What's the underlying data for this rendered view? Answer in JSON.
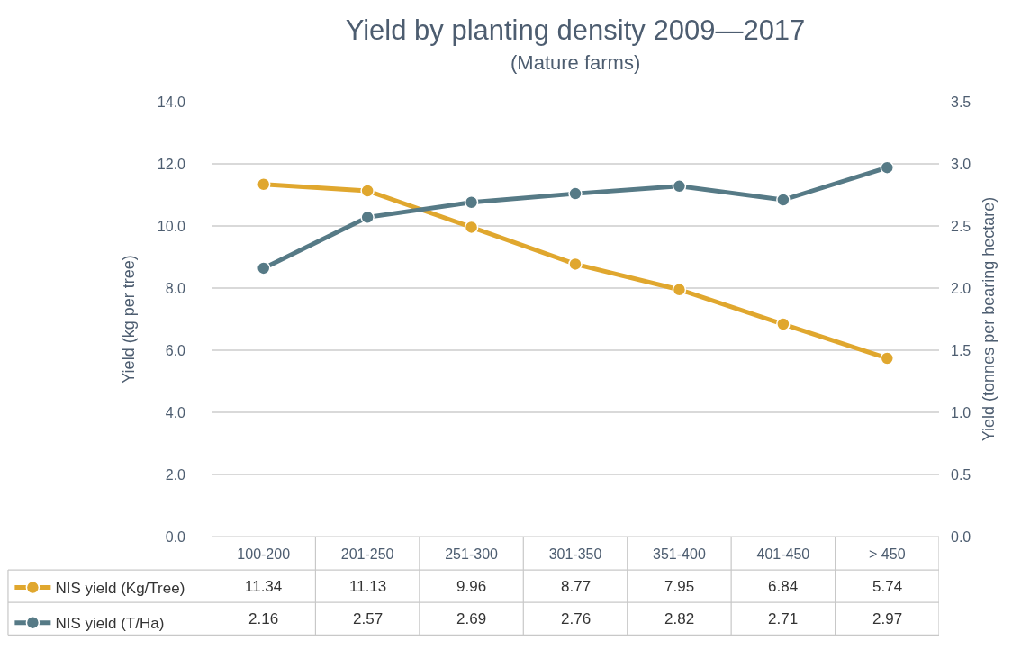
{
  "chart_data": {
    "type": "line",
    "title": "Yield by planting density 2009—2017",
    "subtitle": "(Mature farms)",
    "ylabel": "Yield (kg per tree)",
    "y2label": "Yield (tonnes per bearing hectare)",
    "categories": [
      "100-200",
      "201-250",
      "251-300",
      "301-350",
      "351-400",
      "401-450",
      "> 450"
    ],
    "series": [
      {
        "name": "NIS yield (Kg/Tree)",
        "color": "#e0a72e",
        "values": [
          11.34,
          11.13,
          9.96,
          8.77,
          7.95,
          6.84,
          5.74
        ]
      },
      {
        "name": "NIS yield (T/Ha)",
        "color": "#567a86",
        "axis": "y2",
        "values": [
          2.16,
          2.57,
          2.69,
          2.76,
          2.82,
          2.71,
          2.97
        ]
      }
    ],
    "ylim": [
      0,
      14
    ],
    "yticks": [
      {
        "value": 0,
        "label": "0.0"
      },
      {
        "value": 2,
        "label": "2.0"
      },
      {
        "value": 4,
        "label": "4.0"
      },
      {
        "value": 6,
        "label": "6.0"
      },
      {
        "value": 8,
        "label": "8.0"
      },
      {
        "value": 10,
        "label": "10.0"
      },
      {
        "value": 12,
        "label": "12.0"
      },
      {
        "value": 14,
        "label": "14.0"
      }
    ],
    "y2lim": [
      0,
      3.5
    ],
    "y2ticks": [
      {
        "value": 0,
        "label": "0.0"
      },
      {
        "value": 0.5,
        "label": "0.5"
      },
      {
        "value": 1,
        "label": "1.0"
      },
      {
        "value": 1.5,
        "label": "1.5"
      },
      {
        "value": 2,
        "label": "2.0"
      },
      {
        "value": 2.5,
        "label": "2.5"
      },
      {
        "value": 3,
        "label": "3.0"
      },
      {
        "value": 3.5,
        "label": "3.5"
      }
    ],
    "grid": "y",
    "legend": "bottom left",
    "marker": "circle",
    "line_style": "solid",
    "data_labels": true
  }
}
